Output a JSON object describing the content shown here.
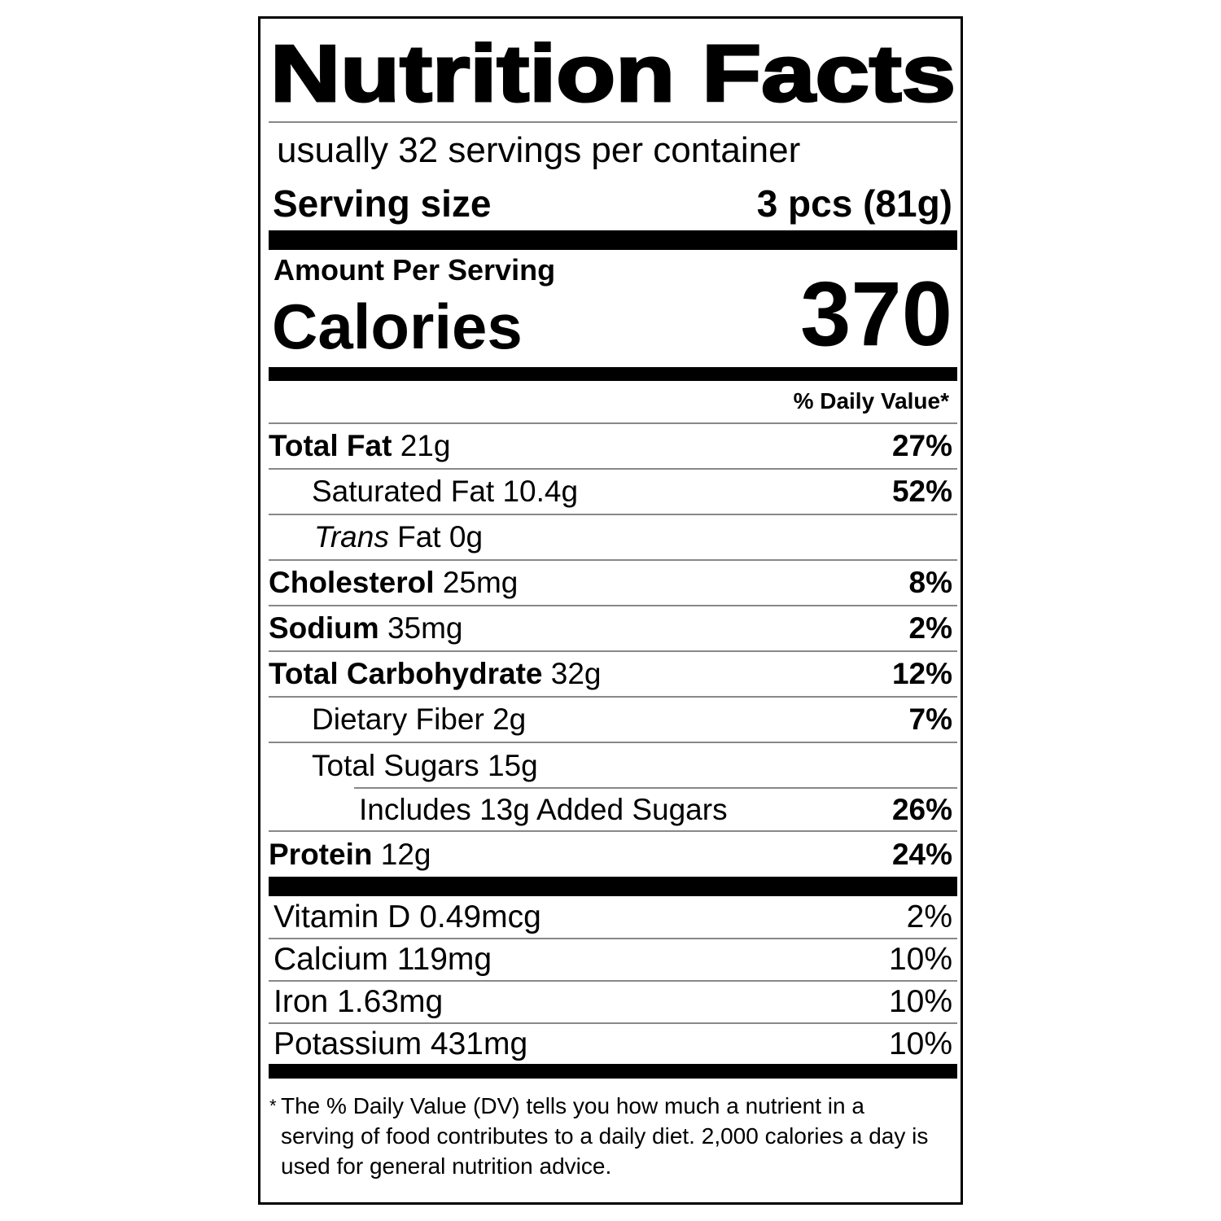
{
  "title": "Nutrition Facts",
  "servings": "usually 32 servings per container",
  "serving_size": {
    "label": "Serving size",
    "value": "3 pcs (81g)"
  },
  "amount_per_serving": "Amount Per Serving",
  "calories": {
    "label": "Calories",
    "value": "370"
  },
  "daily_value_header": "% Daily Value*",
  "nutrients": [
    {
      "name": "Total Fat",
      "amount": "21g",
      "dv": "27%"
    },
    {
      "name": "Saturated Fat",
      "amount": "10.4g",
      "dv": "52%"
    },
    {
      "name_italic": "Trans",
      "name": "Fat",
      "amount": "0g"
    },
    {
      "name": "Cholesterol",
      "amount": "25mg",
      "dv": "8%"
    },
    {
      "name": "Sodium",
      "amount": "35mg",
      "dv": "2%"
    },
    {
      "name": "Total Carbohydrate",
      "amount": "32g",
      "dv": "12%"
    },
    {
      "name": "Dietary Fiber",
      "amount": "2g",
      "dv": "7%"
    },
    {
      "name": "Total Sugars",
      "amount": "15g"
    },
    {
      "name": "Includes 13g Added Sugars",
      "dv": "26%"
    },
    {
      "name": "Protein",
      "amount": "12g",
      "dv": "24%"
    }
  ],
  "vitamins": [
    {
      "name": "Vitamin D",
      "amount": "0.49mcg",
      "dv": "2%"
    },
    {
      "name": "Calcium",
      "amount": "119mg",
      "dv": "10%"
    },
    {
      "name": "Iron",
      "amount": "1.63mg",
      "dv": "10%"
    },
    {
      "name": "Potassium",
      "amount": "431mg",
      "dv": "10%"
    }
  ],
  "footnote": {
    "mark": "*",
    "text": "The % Daily Value (DV) tells you how much a nutrient in a serving of food contributes to a daily diet. 2,000 calories a day is used for general nutrition advice."
  }
}
